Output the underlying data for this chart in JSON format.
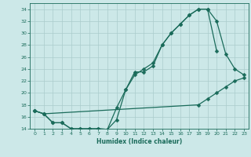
{
  "xlabel": "Humidex (Indice chaleur)",
  "bg_color": "#cce8e8",
  "grid_color": "#aacccc",
  "line_color": "#1a6b5a",
  "xlim": [
    -0.5,
    23.5
  ],
  "ylim": [
    14,
    35
  ],
  "xticks": [
    0,
    1,
    2,
    3,
    4,
    5,
    6,
    7,
    8,
    9,
    10,
    11,
    12,
    13,
    14,
    15,
    16,
    17,
    18,
    19,
    20,
    21,
    22,
    23
  ],
  "yticks": [
    14,
    16,
    18,
    20,
    22,
    24,
    26,
    28,
    30,
    32,
    34
  ],
  "line1_x": [
    0,
    1,
    2,
    3,
    4,
    5,
    6,
    7,
    8,
    9,
    10,
    11,
    12,
    13,
    14,
    15,
    16,
    17,
    18,
    19,
    20,
    21,
    22,
    23
  ],
  "line1_y": [
    17.0,
    16.5,
    15.0,
    15.0,
    14.0,
    14.0,
    14.0,
    14.0,
    13.9,
    17.5,
    20.5,
    23.5,
    23.5,
    24.5,
    28.0,
    30.0,
    31.5,
    33.0,
    34.0,
    34.0,
    32.0,
    26.5,
    24.0,
    23.0
  ],
  "line2_x": [
    0,
    1,
    2,
    3,
    4,
    5,
    6,
    7,
    8,
    9,
    10,
    11,
    12,
    13,
    14,
    15,
    16,
    17,
    18,
    19,
    20
  ],
  "line2_y": [
    17.0,
    16.5,
    15.0,
    15.0,
    14.0,
    14.0,
    14.0,
    14.0,
    13.9,
    15.5,
    20.5,
    23.0,
    24.0,
    25.0,
    28.0,
    30.0,
    31.5,
    33.0,
    34.0,
    34.0,
    27.0
  ],
  "line3_x": [
    0,
    1,
    18,
    19,
    20,
    21,
    22,
    23
  ],
  "line3_y": [
    17.0,
    16.5,
    18.0,
    19.0,
    20.0,
    21.0,
    22.0,
    22.5
  ]
}
